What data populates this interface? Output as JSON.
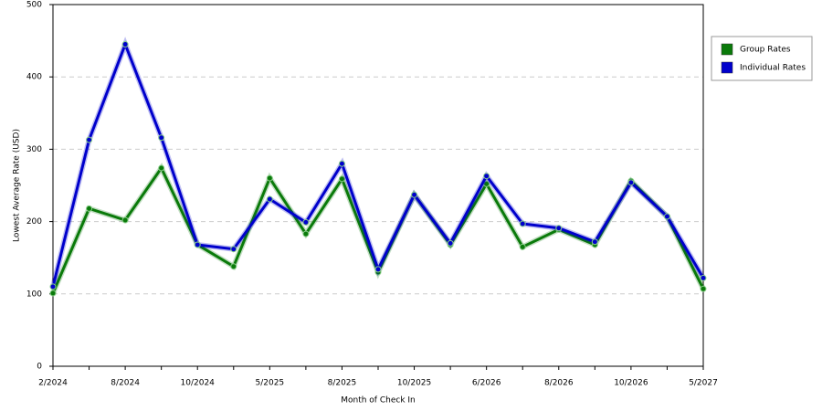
{
  "chart_data": {
    "type": "line",
    "y_label": "Lowest Average Rate (USD)",
    "x_label": "Month of Check In",
    "categories": [
      "2/2024",
      null,
      "8/2024",
      null,
      "10/2024",
      null,
      "5/2025",
      null,
      "8/2025",
      null,
      "10/2025",
      null,
      "6/2026",
      null,
      "8/2026",
      null,
      "10/2026",
      null,
      "5/2027"
    ],
    "series": [
      {
        "name": "Group Rates",
        "color": "#0a7a0a",
        "values": [
          101,
          218,
          202,
          274,
          168,
          138,
          260,
          183,
          259,
          130,
          237,
          168,
          252,
          165,
          189,
          168,
          256,
          207,
          107
        ]
      },
      {
        "name": "Individual Rates",
        "color": "#0000cc",
        "values": [
          110,
          313,
          445,
          316,
          168,
          162,
          231,
          199,
          280,
          134,
          237,
          170,
          263,
          197,
          191,
          172,
          254,
          207,
          122
        ]
      }
    ],
    "ylim": [
      0,
      500
    ],
    "yticks": [
      0,
      100,
      200,
      300,
      400,
      500
    ],
    "grid": true,
    "legend": "right"
  }
}
